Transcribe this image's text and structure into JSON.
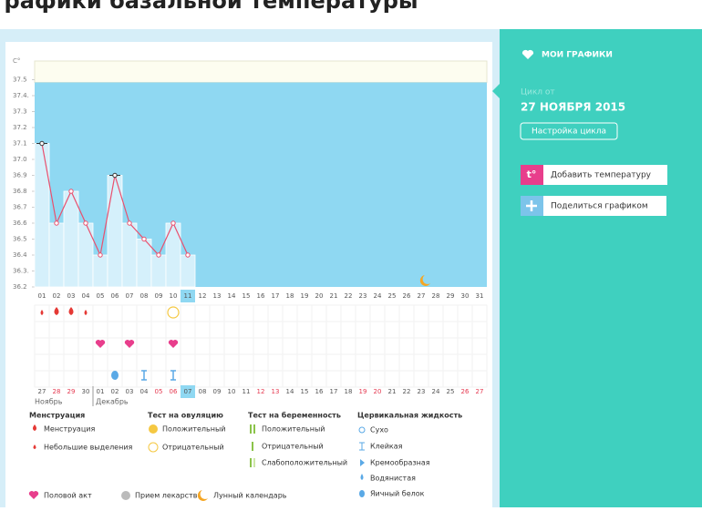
{
  "page_title": "графики базальной температуры",
  "chart_data": {
    "type": "line",
    "y_label": "C°",
    "categories": [
      "01",
      "02",
      "03",
      "04",
      "05",
      "06",
      "07",
      "08",
      "09",
      "10",
      "11",
      "12",
      "13",
      "14",
      "15",
      "16",
      "17",
      "18",
      "19",
      "20",
      "21",
      "22",
      "23",
      "24",
      "25",
      "26",
      "27",
      "28",
      "29",
      "30",
      "31"
    ],
    "values": [
      37.1,
      36.6,
      36.8,
      36.6,
      36.4,
      36.9,
      36.6,
      36.5,
      36.4,
      36.6,
      36.4,
      null,
      null,
      null,
      null,
      null,
      null,
      null,
      null,
      null,
      null,
      null,
      null,
      null,
      null,
      null,
      null,
      null,
      null,
      null,
      null
    ],
    "color": "#e9506e",
    "ylim": [
      36.2,
      37.6
    ],
    "yticks": [
      36.2,
      {
        "value": 36.3,
        "label": "36.3."
      },
      36.4,
      36.5,
      36.6,
      36.7,
      36.8,
      36.9,
      {
        "value": 37,
        "label": "37.0"
      },
      37.1,
      37.2,
      37.3,
      {
        "value": 37.4,
        "label": "37.4."
      },
      37.5
    ]
  },
  "cycle_row": {
    "dates": [
      "27",
      "28",
      "29",
      "30",
      "01",
      "02",
      "03",
      "04",
      "05",
      "06",
      "07",
      "08",
      "09",
      "10",
      "11",
      "12",
      "13",
      "14",
      "15",
      "16",
      "17",
      "18",
      "19",
      "20",
      "21",
      "22",
      "23",
      "24",
      "25",
      "26",
      "27"
    ],
    "months": [
      "Ноябрь",
      "Декабрь"
    ]
  },
  "legend": {
    "menstruation": {
      "title": "Менструация",
      "items": [
        "Менструация",
        "Небольшие выделения"
      ]
    },
    "ovulation_test": {
      "title": "Тест на овуляцию",
      "items": [
        "Положительный",
        "Отрицательный"
      ]
    },
    "pregnancy_test": {
      "title": "Тест на беременность",
      "items": [
        "Положительный",
        "Отрицательный",
        "Слабоположительный"
      ]
    },
    "cervical_fluid": {
      "title": "Цервикальная жидкость",
      "items": [
        "Сухо",
        "Клейкая",
        "Кремообразная",
        "Водянистая",
        "Яичный белок"
      ]
    },
    "other": [
      "Половой акт",
      "Прием лекарств",
      "Лунный календарь"
    ]
  },
  "sidebar": {
    "my_charts": "МОИ ГРАФИКИ",
    "cycle_from": "Цикл от",
    "cycle_date": "27 НОЯБРЯ 2015",
    "settings": "Настройка цикла",
    "add_temp_icon": "t°",
    "add_temp": "Добавить температуру",
    "share": "Поделиться графиком"
  }
}
